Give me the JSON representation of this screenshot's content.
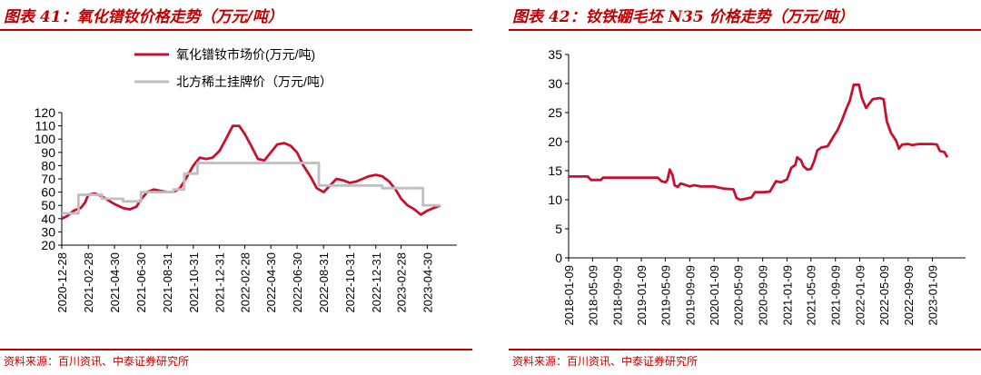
{
  "figures": [
    {
      "title": "图表 41：氧化镨钕价格走势（万元/吨）",
      "source": "资料来源：百川资讯、中泰证券研究所"
    },
    {
      "title": "图表 42：钕铁硼毛坯 N35 价格走势（万元/吨）",
      "source": "资料来源：百川资讯、中泰证券研究所"
    }
  ],
  "colors": {
    "accent": "#c00000",
    "market_line": "#c8102e",
    "listed_line": "#bfbfbf"
  },
  "chart_data": [
    {
      "type": "line",
      "x_ticks": [
        "2020-12-28",
        "2021-02-28",
        "2021-04-30",
        "2021-06-30",
        "2021-08-31",
        "2021-10-31",
        "2021-12-31",
        "2022-02-28",
        "2022-04-30",
        "2022-06-30",
        "2022-08-31",
        "2022-10-31",
        "2022-12-31",
        "2023-02-28",
        "2023-04-30"
      ],
      "ylim": [
        20,
        120
      ],
      "y_ticks": [
        20,
        30,
        40,
        50,
        60,
        70,
        80,
        90,
        100,
        110,
        120
      ],
      "legend_position": "top",
      "grid": false,
      "series": [
        {
          "name": "氧化镨钕市场价(万元/吨)",
          "color": "#c8102e",
          "points": [
            [
              "2020-12-28",
              40
            ],
            [
              "2021-01-10",
              42
            ],
            [
              "2021-01-25",
              46
            ],
            [
              "2021-02-10",
              48
            ],
            [
              "2021-02-20",
              52
            ],
            [
              "2021-02-28",
              58
            ],
            [
              "2021-03-15",
              59
            ],
            [
              "2021-03-31",
              57
            ],
            [
              "2021-04-15",
              54
            ],
            [
              "2021-04-30",
              51
            ],
            [
              "2021-05-20",
              48
            ],
            [
              "2021-06-05",
              47
            ],
            [
              "2021-06-20",
              49
            ],
            [
              "2021-06-30",
              54
            ],
            [
              "2021-07-15",
              60
            ],
            [
              "2021-07-31",
              62
            ],
            [
              "2021-08-15",
              61
            ],
            [
              "2021-08-31",
              60
            ],
            [
              "2021-09-15",
              60
            ],
            [
              "2021-09-30",
              63
            ],
            [
              "2021-10-15",
              71
            ],
            [
              "2021-10-31",
              80
            ],
            [
              "2021-11-15",
              86
            ],
            [
              "2021-11-30",
              85
            ],
            [
              "2021-12-15",
              86
            ],
            [
              "2021-12-31",
              91
            ],
            [
              "2022-01-15",
              100
            ],
            [
              "2022-01-31",
              110
            ],
            [
              "2022-02-15",
              110
            ],
            [
              "2022-02-28",
              104
            ],
            [
              "2022-03-15",
              95
            ],
            [
              "2022-03-31",
              85
            ],
            [
              "2022-04-15",
              84
            ],
            [
              "2022-04-30",
              90
            ],
            [
              "2022-05-15",
              96
            ],
            [
              "2022-05-31",
              97
            ],
            [
              "2022-06-15",
              95
            ],
            [
              "2022-06-30",
              90
            ],
            [
              "2022-07-15",
              80
            ],
            [
              "2022-07-31",
              72
            ],
            [
              "2022-08-15",
              63
            ],
            [
              "2022-08-31",
              60
            ],
            [
              "2022-09-15",
              65
            ],
            [
              "2022-09-30",
              70
            ],
            [
              "2022-10-15",
              69
            ],
            [
              "2022-10-31",
              67
            ],
            [
              "2022-11-15",
              68
            ],
            [
              "2022-11-30",
              70
            ],
            [
              "2022-12-15",
              72
            ],
            [
              "2022-12-31",
              73
            ],
            [
              "2023-01-15",
              72
            ],
            [
              "2023-01-31",
              68
            ],
            [
              "2023-02-15",
              62
            ],
            [
              "2023-02-28",
              55
            ],
            [
              "2023-03-15",
              50
            ],
            [
              "2023-03-31",
              47
            ],
            [
              "2023-04-15",
              43
            ],
            [
              "2023-04-30",
              46
            ],
            [
              "2023-05-15",
              48
            ],
            [
              "2023-05-31",
              50
            ]
          ]
        },
        {
          "name": "北方稀土挂牌价（万元/吨）",
          "color": "#bfbfbf",
          "points": [
            [
              "2020-12-28",
              44
            ],
            [
              "2021-02-05",
              44
            ],
            [
              "2021-02-05",
              58
            ],
            [
              "2021-04-01",
              58
            ],
            [
              "2021-04-01",
              55
            ],
            [
              "2021-05-20",
              55
            ],
            [
              "2021-05-20",
              53
            ],
            [
              "2021-07-01",
              53
            ],
            [
              "2021-07-01",
              60
            ],
            [
              "2021-09-15",
              60
            ],
            [
              "2021-09-15",
              62
            ],
            [
              "2021-10-10",
              62
            ],
            [
              "2021-10-10",
              74
            ],
            [
              "2021-11-10",
              74
            ],
            [
              "2021-11-10",
              82
            ],
            [
              "2022-08-20",
              82
            ],
            [
              "2022-08-20",
              65
            ],
            [
              "2023-01-15",
              65
            ],
            [
              "2023-01-15",
              63
            ],
            [
              "2023-04-20",
              63
            ],
            [
              "2023-04-20",
              50
            ],
            [
              "2023-05-31",
              50
            ]
          ]
        }
      ]
    },
    {
      "type": "line",
      "x_ticks": [
        "2018-01-09",
        "2018-05-09",
        "2018-09-09",
        "2019-01-09",
        "2019-05-09",
        "2019-09-09",
        "2020-01-09",
        "2020-05-09",
        "2020-09-09",
        "2021-01-09",
        "2021-05-09",
        "2021-09-09",
        "2022-01-09",
        "2022-05-09",
        "2022-09-09",
        "2023-01-09"
      ],
      "ylim": [
        0,
        35
      ],
      "y_ticks": [
        0,
        5,
        10,
        15,
        20,
        25,
        30,
        35
      ],
      "grid": false,
      "series": [
        {
          "color": "#c8102e",
          "points": [
            [
              "2018-01-09",
              14
            ],
            [
              "2018-04-15",
              14
            ],
            [
              "2018-05-01",
              13.4
            ],
            [
              "2018-06-20",
              13.4
            ],
            [
              "2018-07-01",
              13.8
            ],
            [
              "2019-04-01",
              13.8
            ],
            [
              "2019-04-20",
              13.2
            ],
            [
              "2019-05-10",
              13
            ],
            [
              "2019-05-20",
              13.4
            ],
            [
              "2019-06-01",
              15.2
            ],
            [
              "2019-06-15",
              14.2
            ],
            [
              "2019-06-25",
              12.5
            ],
            [
              "2019-07-10",
              12.2
            ],
            [
              "2019-07-25",
              12.8
            ],
            [
              "2019-08-15",
              12.6
            ],
            [
              "2019-09-09",
              12.3
            ],
            [
              "2019-10-01",
              12.5
            ],
            [
              "2019-11-01",
              12.3
            ],
            [
              "2020-01-09",
              12.3
            ],
            [
              "2020-02-01",
              12.1
            ],
            [
              "2020-03-01",
              11.9
            ],
            [
              "2020-04-15",
              11.8
            ],
            [
              "2020-05-01",
              10.3
            ],
            [
              "2020-05-20",
              10
            ],
            [
              "2020-06-20",
              10.2
            ],
            [
              "2020-07-15",
              10.4
            ],
            [
              "2020-08-01",
              11.3
            ],
            [
              "2020-09-15",
              11.3
            ],
            [
              "2020-10-15",
              11.4
            ],
            [
              "2020-11-15",
              13.2
            ],
            [
              "2020-12-10",
              13
            ],
            [
              "2021-01-09",
              13.5
            ],
            [
              "2021-01-31",
              15.5
            ],
            [
              "2021-02-20",
              16
            ],
            [
              "2021-03-01",
              17.3
            ],
            [
              "2021-03-20",
              16.8
            ],
            [
              "2021-04-01",
              15.8
            ],
            [
              "2021-04-20",
              15.2
            ],
            [
              "2021-05-09",
              15.3
            ],
            [
              "2021-05-25",
              16.6
            ],
            [
              "2021-06-10",
              18.5
            ],
            [
              "2021-07-01",
              19
            ],
            [
              "2021-08-01",
              19.2
            ],
            [
              "2021-09-01",
              21
            ],
            [
              "2021-09-20",
              22
            ],
            [
              "2021-10-10",
              23.5
            ],
            [
              "2021-11-01",
              25.5
            ],
            [
              "2021-11-20",
              27
            ],
            [
              "2021-12-10",
              29.8
            ],
            [
              "2022-01-05",
              29.8
            ],
            [
              "2022-01-20",
              27.5
            ],
            [
              "2022-02-10",
              25.8
            ],
            [
              "2022-02-25",
              26.5
            ],
            [
              "2022-03-15",
              27.3
            ],
            [
              "2022-04-20",
              27.5
            ],
            [
              "2022-05-09",
              27.3
            ],
            [
              "2022-05-25",
              23.5
            ],
            [
              "2022-06-15",
              21.5
            ],
            [
              "2022-07-10",
              20.2
            ],
            [
              "2022-07-25",
              18.8
            ],
            [
              "2022-08-10",
              19.5
            ],
            [
              "2022-09-09",
              19.6
            ],
            [
              "2022-10-01",
              19.4
            ],
            [
              "2022-11-01",
              19.6
            ],
            [
              "2022-12-01",
              19.6
            ],
            [
              "2023-01-09",
              19.6
            ],
            [
              "2023-01-31",
              19.5
            ],
            [
              "2023-02-15",
              18.4
            ],
            [
              "2023-03-10",
              18.2
            ],
            [
              "2023-03-25",
              17.3
            ]
          ]
        }
      ]
    }
  ]
}
